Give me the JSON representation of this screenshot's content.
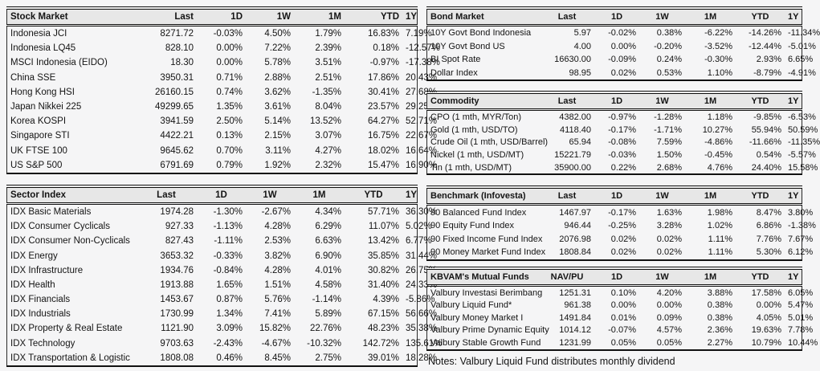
{
  "colors": {
    "page_background": "#f5f5f6",
    "header_background": "#e7e7e7",
    "border": "#111111",
    "text": "#141414"
  },
  "notes": "Notes: Valbury Liquid Fund distributes monthly dividend",
  "tables": {
    "stock_market": {
      "title": "Stock Market",
      "headers": [
        "Last",
        "1D",
        "1W",
        "1M",
        "YTD",
        "1Y"
      ],
      "rows": [
        {
          "name": "Indonesia JCI",
          "values": [
            "8271.72",
            "-0.03%",
            "4.50%",
            "1.79%",
            "16.83%",
            "7.19%"
          ]
        },
        {
          "name": "Indonesia LQ45",
          "values": [
            "828.10",
            "0.00%",
            "7.22%",
            "2.39%",
            "0.18%",
            "-12.57%"
          ]
        },
        {
          "name": "MSCI Indonesia (EIDO)",
          "values": [
            "18.30",
            "0.00%",
            "5.78%",
            "3.51%",
            "-0.97%",
            "-17.38%"
          ]
        },
        {
          "name": "China SSE",
          "values": [
            "3950.31",
            "0.71%",
            "2.88%",
            "2.51%",
            "17.86%",
            "20.43%"
          ]
        },
        {
          "name": "Hong Kong HSI",
          "values": [
            "26160.15",
            "0.74%",
            "3.62%",
            "-1.35%",
            "30.41%",
            "27.68%"
          ]
        },
        {
          "name": "Japan Nikkei 225",
          "values": [
            "49299.65",
            "1.35%",
            "3.61%",
            "8.04%",
            "23.57%",
            "29.25%"
          ]
        },
        {
          "name": "Korea KOSPI",
          "values": [
            "3941.59",
            "2.50%",
            "5.14%",
            "13.52%",
            "64.27%",
            "52.71%"
          ]
        },
        {
          "name": "Singapore STI",
          "values": [
            "4422.21",
            "0.13%",
            "2.15%",
            "3.07%",
            "16.75%",
            "22.67%"
          ]
        },
        {
          "name": "UK FTSE 100",
          "values": [
            "9645.62",
            "0.70%",
            "3.11%",
            "4.27%",
            "18.02%",
            "16.64%"
          ]
        },
        {
          "name": "US S&P 500",
          "values": [
            "6791.69",
            "0.79%",
            "1.92%",
            "2.32%",
            "15.47%",
            "16.90%"
          ]
        }
      ]
    },
    "sector_index": {
      "title": "Sector Index",
      "headers": [
        "Last",
        "1D",
        "1W",
        "1M",
        "YTD",
        "1Y"
      ],
      "rows": [
        {
          "name": "IDX Basic Materials",
          "values": [
            "1974.28",
            "-1.30%",
            "-2.67%",
            "4.34%",
            "57.71%",
            "36.30%"
          ]
        },
        {
          "name": "IDX Consumer Cyclicals",
          "values": [
            "927.33",
            "-1.13%",
            "4.28%",
            "6.29%",
            "11.07%",
            "5.02%"
          ]
        },
        {
          "name": "IDX Consumer Non-Cyclicals",
          "values": [
            "827.43",
            "-1.11%",
            "2.53%",
            "6.63%",
            "13.42%",
            "6.77%"
          ]
        },
        {
          "name": "IDX Energy",
          "values": [
            "3653.32",
            "-0.33%",
            "3.82%",
            "6.90%",
            "35.85%",
            "31.44%"
          ]
        },
        {
          "name": "IDX Infrastructure",
          "values": [
            "1934.76",
            "-0.84%",
            "4.28%",
            "4.01%",
            "30.82%",
            "26.75%"
          ]
        },
        {
          "name": "IDX Health",
          "values": [
            "1913.88",
            "1.65%",
            "1.51%",
            "4.58%",
            "31.40%",
            "24.33%"
          ]
        },
        {
          "name": "IDX Financials",
          "values": [
            "1453.67",
            "0.87%",
            "5.76%",
            "-1.14%",
            "4.39%",
            "-5.86%"
          ]
        },
        {
          "name": "IDX Industrials",
          "values": [
            "1730.99",
            "1.34%",
            "7.41%",
            "5.89%",
            "67.15%",
            "56.66%"
          ]
        },
        {
          "name": "IDX Property & Real Estate",
          "values": [
            "1121.90",
            "3.09%",
            "15.82%",
            "22.76%",
            "48.23%",
            "35.38%"
          ]
        },
        {
          "name": "IDX Technology",
          "values": [
            "9703.63",
            "-2.43%",
            "-4.67%",
            "-10.32%",
            "142.72%",
            "135.61%"
          ]
        },
        {
          "name": "IDX Transportation & Logistic",
          "values": [
            "1808.08",
            "0.46%",
            "8.45%",
            "2.75%",
            "39.01%",
            "18.28%"
          ]
        }
      ]
    },
    "bond_market": {
      "title": "Bond Market",
      "headers": [
        "Last",
        "1D",
        "1W",
        "1M",
        "YTD",
        "1Y"
      ],
      "rows": [
        {
          "name": "10Y Govt Bond Indonesia",
          "values": [
            "5.97",
            "-0.02%",
            "0.38%",
            "-6.22%",
            "-14.26%",
            "-11.34%"
          ]
        },
        {
          "name": "10Y Govt Bond US",
          "values": [
            "4.00",
            "0.00%",
            "-0.20%",
            "-3.52%",
            "-12.44%",
            "-5.01%"
          ]
        },
        {
          "name": "BI Spot Rate",
          "values": [
            "16630.00",
            "-0.09%",
            "0.24%",
            "-0.30%",
            "2.93%",
            "6.65%"
          ]
        },
        {
          "name": "Dollar Index",
          "values": [
            "98.95",
            "0.02%",
            "0.53%",
            "1.10%",
            "-8.79%",
            "-4.91%"
          ]
        }
      ]
    },
    "commodity": {
      "title": "Commodity",
      "headers": [
        "Last",
        "1D",
        "1W",
        "1M",
        "YTD",
        "1Y"
      ],
      "rows": [
        {
          "name": "CPO (1 mth, MYR/Ton)",
          "values": [
            "4382.00",
            "-0.97%",
            "-1.28%",
            "1.18%",
            "-9.85%",
            "-6.53%"
          ]
        },
        {
          "name": "Gold (1 mth, USD/TO)",
          "values": [
            "4118.40",
            "-0.17%",
            "-1.71%",
            "10.27%",
            "55.94%",
            "50.59%"
          ]
        },
        {
          "name": "Crude Oil (1 mth, USD/Barrel)",
          "values": [
            "65.94",
            "-0.08%",
            "7.59%",
            "-4.86%",
            "-11.66%",
            "-11.35%"
          ]
        },
        {
          "name": "Nickel (1 mth, USD/MT)",
          "values": [
            "15221.79",
            "-0.03%",
            "1.50%",
            "-0.45%",
            "0.54%",
            "-5.57%"
          ]
        },
        {
          "name": "Tin (1 mth, USD/MT)",
          "values": [
            "35900.00",
            "0.22%",
            "2.68%",
            "4.76%",
            "24.40%",
            "15.58%"
          ]
        }
      ]
    },
    "benchmark": {
      "title": "Benchmark (Infovesta)",
      "headers": [
        "Last",
        "1D",
        "1W",
        "1M",
        "YTD",
        "1Y"
      ],
      "rows": [
        {
          "name": "90 Balanced Fund Index",
          "values": [
            "1467.97",
            "-0.17%",
            "1.63%",
            "1.98%",
            "8.47%",
            "3.80%"
          ]
        },
        {
          "name": "90 Equity Fund Index",
          "values": [
            "946.44",
            "-0.25%",
            "3.28%",
            "1.02%",
            "6.86%",
            "-1.38%"
          ]
        },
        {
          "name": "90 Fixed Income Fund Index",
          "values": [
            "2076.98",
            "0.02%",
            "0.02%",
            "1.11%",
            "7.76%",
            "7.67%"
          ]
        },
        {
          "name": "90 Money Market Fund Index",
          "values": [
            "1808.84",
            "0.02%",
            "0.02%",
            "1.11%",
            "5.30%",
            "6.12%"
          ]
        }
      ]
    },
    "mutual_funds": {
      "title": "KBVAM's Mutual Funds",
      "headers": [
        "NAV/PU",
        "1D",
        "1W",
        "1M",
        "YTD",
        "1Y"
      ],
      "rows": [
        {
          "name": "Valbury Investasi Berimbang",
          "values": [
            "1251.31",
            "0.10%",
            "4.20%",
            "3.88%",
            "17.58%",
            "6.05%"
          ]
        },
        {
          "name": "Valbury Liquid Fund*",
          "values": [
            "961.38",
            "0.00%",
            "0.00%",
            "0.38%",
            "0.00%",
            "5.47%"
          ]
        },
        {
          "name": "Valbury Money Market I",
          "values": [
            "1491.84",
            "0.01%",
            "0.09%",
            "0.38%",
            "4.05%",
            "5.01%"
          ]
        },
        {
          "name": "Valbury Prime Dynamic Equity",
          "values": [
            "1014.12",
            "-0.07%",
            "4.57%",
            "2.36%",
            "19.63%",
            "7.78%"
          ]
        },
        {
          "name": "Valbury Stable Growth Fund",
          "values": [
            "1231.99",
            "0.05%",
            "0.05%",
            "2.27%",
            "10.79%",
            "10.44%"
          ]
        }
      ]
    }
  }
}
